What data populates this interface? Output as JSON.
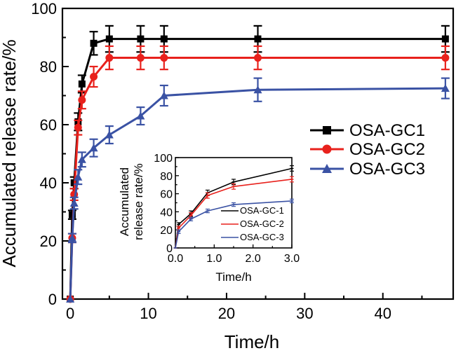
{
  "chart_data": [
    {
      "type": "line",
      "xlabel": "Time/h",
      "ylabel": "Accumulated release rate/%",
      "xlim": [
        -1,
        49
      ],
      "ylim": [
        0,
        100
      ],
      "xticks": [
        "0",
        "10",
        "20",
        "30",
        "40"
      ],
      "yticks": [
        "0",
        "20",
        "40",
        "60",
        "80",
        "100"
      ],
      "legend_position": "center-right",
      "x": [
        0,
        0.25,
        0.5,
        1,
        1.5,
        3,
        5,
        9,
        12,
        24,
        48
      ],
      "series": [
        {
          "name": "OSA-GC1",
          "color": "#000000",
          "marker": "square",
          "values": [
            0,
            29,
            40,
            61,
            74,
            88,
            89.5,
            89.5,
            89.5,
            89.5,
            89.5
          ],
          "errors": [
            0,
            1.5,
            2,
            3,
            3,
            4,
            4.5,
            4.5,
            4.5,
            4.5,
            4.5
          ]
        },
        {
          "name": "OSA-GC2",
          "color": "#e8211c",
          "marker": "circle",
          "values": [
            0,
            21,
            36,
            59,
            68.5,
            76.5,
            83,
            83,
            83,
            83,
            83
          ],
          "errors": [
            0,
            1.5,
            2,
            2.5,
            3,
            3.5,
            4,
            4,
            4,
            4,
            4
          ]
        },
        {
          "name": "OSA-GC3",
          "color": "#3a52a4",
          "marker": "triangle",
          "values": [
            0,
            21,
            33,
            42,
            48,
            52,
            56.5,
            63,
            70,
            72,
            72.5
          ],
          "errors": [
            0,
            1.5,
            2,
            2.5,
            2.5,
            3,
            3,
            3,
            3.5,
            4,
            3.5
          ]
        }
      ]
    },
    {
      "type": "line",
      "xlabel": "Time/h",
      "ylabel": "Accumulated release rate/%",
      "xlim": [
        0,
        3
      ],
      "ylim": [
        0,
        100
      ],
      "xticks": [
        "0.0",
        "1.0",
        "2.0",
        "3.0"
      ],
      "yticks": [
        "0",
        "20",
        "40",
        "60",
        "80",
        "100"
      ],
      "legend_position": "right",
      "x": [
        0,
        0.083,
        0.4,
        0.83,
        1.5,
        3
      ],
      "series": [
        {
          "name": "OSA-GC-1",
          "color": "#000000",
          "values": [
            0,
            26,
            38,
            61,
            73,
            88
          ],
          "errors": [
            0,
            2,
            3,
            3,
            3,
            3
          ]
        },
        {
          "name": "OSA-GC-2",
          "color": "#e8211c",
          "values": [
            0,
            22,
            36,
            58,
            68,
            76
          ],
          "errors": [
            0,
            2,
            3,
            3,
            3,
            3
          ]
        },
        {
          "name": "OSA-GC-3",
          "color": "#3a52a4",
          "values": [
            0,
            18,
            32,
            41,
            48,
            52
          ],
          "errors": [
            0,
            2,
            2,
            2,
            2,
            2
          ]
        }
      ]
    }
  ]
}
